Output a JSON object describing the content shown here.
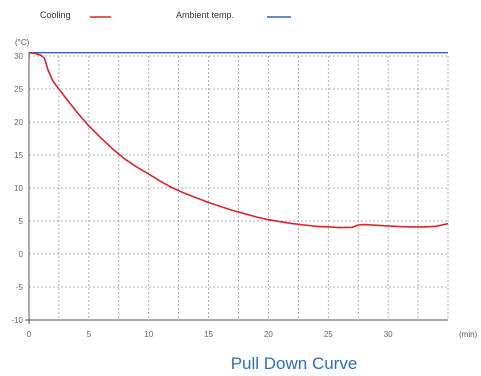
{
  "chart_data": {
    "type": "line",
    "title": "Pull Down Curve",
    "xlabel": "",
    "ylabel": "",
    "x_unit": "(min)",
    "y_unit": "(°C)",
    "xlim": [
      0,
      35
    ],
    "ylim": [
      -10,
      31
    ],
    "x_ticks": [
      0,
      5,
      10,
      15,
      20,
      25,
      30
    ],
    "y_ticks": [
      30,
      25,
      20,
      15,
      10,
      5,
      0,
      -5,
      -10
    ],
    "x_gridlines": [
      0,
      2.5,
      5,
      7.5,
      10,
      12.5,
      15,
      17.5,
      20,
      22.5,
      25,
      27.5,
      30,
      32.5,
      35
    ],
    "y_gridlines": [
      30,
      25,
      20,
      15,
      10,
      5,
      0,
      -5,
      -10
    ],
    "grid": true,
    "legend_position": "top-left",
    "series": [
      {
        "name": "Cooling",
        "color": "#d9262c",
        "x": [
          0,
          0.5,
          1,
          1.3,
          1.6,
          2.0,
          2.5,
          3,
          4,
          5,
          6,
          7,
          8,
          9,
          10,
          11,
          12,
          13,
          14,
          15,
          16,
          17,
          18,
          19,
          20,
          21,
          22,
          23,
          24,
          25,
          26,
          27,
          27.5,
          28,
          29,
          30,
          31,
          32,
          33,
          34,
          35
        ],
        "y": [
          30.5,
          30.4,
          30.1,
          29.6,
          27.8,
          26.2,
          25.0,
          23.8,
          21.5,
          19.4,
          17.6,
          15.9,
          14.4,
          13.2,
          12.1,
          11.0,
          10.0,
          9.2,
          8.5,
          7.8,
          7.2,
          6.6,
          6.1,
          5.6,
          5.2,
          4.9,
          4.6,
          4.4,
          4.2,
          4.1,
          4.0,
          4.05,
          4.4,
          4.45,
          4.35,
          4.25,
          4.15,
          4.1,
          4.1,
          4.2,
          4.6
        ]
      },
      {
        "name": "Ambient temp.",
        "color": "#3a5fb0",
        "x": [
          0,
          35
        ],
        "y": [
          30.5,
          30.5
        ]
      }
    ]
  }
}
